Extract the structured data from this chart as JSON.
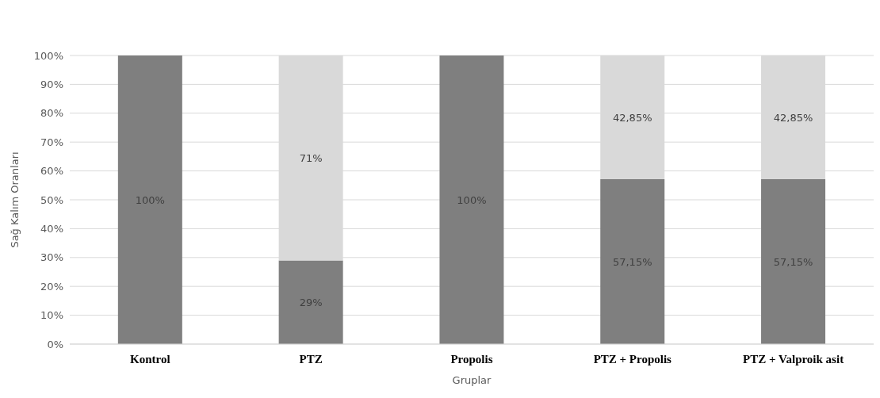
{
  "chart_data": {
    "type": "bar",
    "stacked": true,
    "xlabel": "Gruplar",
    "ylabel": "Sağ Kalım Oranları",
    "categories": [
      "Kontrol",
      "PTZ",
      "Propolis",
      "PTZ + Propolis",
      "PTZ + Valproik asit"
    ],
    "series": [
      {
        "color": "#7f7f7f",
        "values": [
          100,
          29,
          100,
          57.15,
          57.15
        ],
        "value_labels": [
          "100%",
          "29%",
          "100%",
          "57,15%",
          "57,15%"
        ]
      },
      {
        "color": "#d9d9d9",
        "values": [
          null,
          71,
          null,
          42.85,
          42.85
        ],
        "value_labels": [
          null,
          "71%",
          null,
          "42,85%",
          "42,85%"
        ]
      }
    ],
    "ylim": [
      0,
      100
    ],
    "yticks": [
      {
        "value": 0,
        "label": "0%"
      },
      {
        "value": 10,
        "label": "10%"
      },
      {
        "value": 20,
        "label": "20%"
      },
      {
        "value": 30,
        "label": "30%"
      },
      {
        "value": 40,
        "label": "40%"
      },
      {
        "value": 50,
        "label": "50%"
      },
      {
        "value": 60,
        "label": "60%"
      },
      {
        "value": 70,
        "label": "70%"
      },
      {
        "value": 80,
        "label": "80%"
      },
      {
        "value": 90,
        "label": "90%"
      },
      {
        "value": 100,
        "label": "100%"
      }
    ],
    "grid": "y"
  }
}
